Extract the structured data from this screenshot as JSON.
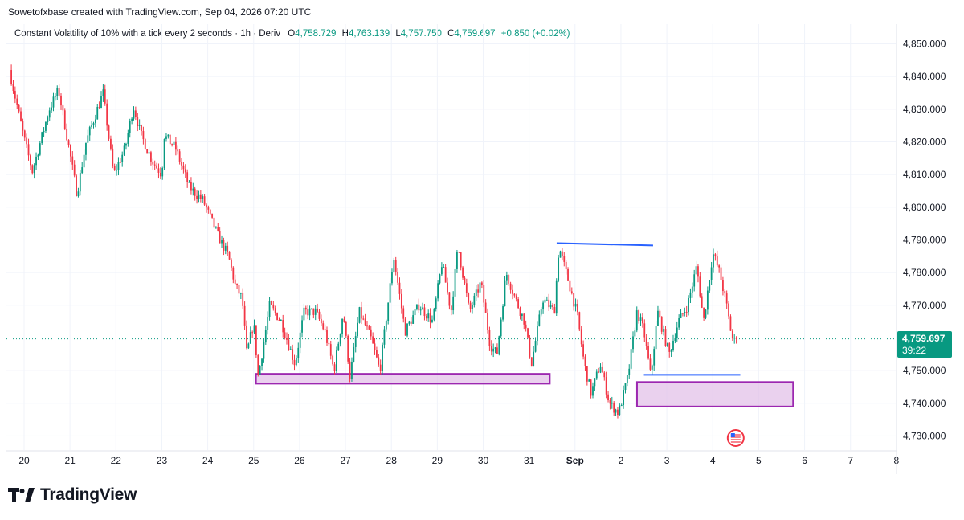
{
  "header": {
    "credit": "Sowetofxbase created with TradingView.com, Sep 04, 2026 07:20 UTC"
  },
  "legend": {
    "symbol": "Constant Volatility of 10% with a tick every 2 seconds · 1h · Deriv",
    "open_label": "O",
    "open": "4,758.729",
    "high_label": "H",
    "high": "4,763.139",
    "low_label": "L",
    "low": "4,757.750",
    "close_label": "C",
    "close": "4,759.697",
    "change": "+0.850 (+0.02%)"
  },
  "price_tag": {
    "price": "4,759.697",
    "countdown": "39:22"
  },
  "brand": {
    "name": "TradingView"
  },
  "colors": {
    "up": "#089981",
    "down": "#f23645",
    "zone_stroke": "#9c27b0",
    "zone_fill": "#e1bee7",
    "trendline": "#2962ff"
  },
  "chart_data": {
    "type": "candlestick",
    "ylim": [
      4726,
      4855
    ],
    "y_ticks": [
      "4,850.000",
      "4,840.000",
      "4,830.000",
      "4,820.000",
      "4,810.000",
      "4,800.000",
      "4,790.000",
      "4,780.000",
      "4,770.000",
      "4,760.000",
      "4,750.000",
      "4,740.000",
      "4,730.000"
    ],
    "y_tick_values": [
      4850,
      4840,
      4830,
      4820,
      4810,
      4800,
      4790,
      4780,
      4770,
      4760,
      4750,
      4740,
      4730
    ],
    "x_labels": [
      "20",
      "21",
      "22",
      "23",
      "24",
      "25",
      "26",
      "27",
      "28",
      "29",
      "30",
      "31",
      "Sep",
      "2",
      "3",
      "4",
      "5",
      "6",
      "7",
      "8"
    ],
    "x_label_days": [
      0,
      1,
      2,
      3,
      4,
      5,
      6,
      7,
      8,
      9,
      10,
      11,
      12,
      13,
      14,
      15,
      16,
      17,
      18,
      19
    ],
    "x_range_days": [
      -0.35,
      19.05
    ],
    "last_price": 4759.697,
    "anchors": [
      [
        -0.32,
        4842
      ],
      [
        0.0,
        4821
      ],
      [
        0.18,
        4811
      ],
      [
        0.55,
        4830
      ],
      [
        0.75,
        4836
      ],
      [
        0.98,
        4818
      ],
      [
        1.15,
        4804
      ],
      [
        1.35,
        4820
      ],
      [
        1.72,
        4835
      ],
      [
        1.95,
        4810
      ],
      [
        2.2,
        4818
      ],
      [
        2.38,
        4831
      ],
      [
        2.55,
        4822
      ],
      [
        2.8,
        4814
      ],
      [
        3.0,
        4810
      ],
      [
        3.05,
        4822
      ],
      [
        3.3,
        4818
      ],
      [
        3.6,
        4806
      ],
      [
        3.9,
        4802
      ],
      [
        4.2,
        4792
      ],
      [
        4.45,
        4785
      ],
      [
        4.6,
        4776
      ],
      [
        4.75,
        4772
      ],
      [
        4.85,
        4755
      ],
      [
        5.0,
        4765
      ],
      [
        5.1,
        4748
      ],
      [
        5.35,
        4770
      ],
      [
        5.6,
        4765
      ],
      [
        5.9,
        4752
      ],
      [
        6.1,
        4768
      ],
      [
        6.35,
        4768
      ],
      [
        6.55,
        4762
      ],
      [
        6.75,
        4750
      ],
      [
        6.95,
        4768
      ],
      [
        7.1,
        4748
      ],
      [
        7.3,
        4768
      ],
      [
        7.55,
        4760
      ],
      [
        7.75,
        4750
      ],
      [
        8.05,
        4785
      ],
      [
        8.3,
        4762
      ],
      [
        8.6,
        4770
      ],
      [
        8.9,
        4765
      ],
      [
        9.1,
        4783
      ],
      [
        9.3,
        4768
      ],
      [
        9.45,
        4788
      ],
      [
        9.7,
        4768
      ],
      [
        9.95,
        4777
      ],
      [
        10.15,
        4758
      ],
      [
        10.3,
        4755
      ],
      [
        10.5,
        4780
      ],
      [
        10.7,
        4772
      ],
      [
        10.9,
        4765
      ],
      [
        11.05,
        4752
      ],
      [
        11.3,
        4772
      ],
      [
        11.55,
        4768
      ],
      [
        11.65,
        4788
      ],
      [
        11.9,
        4775
      ],
      [
        12.05,
        4767
      ],
      [
        12.2,
        4752
      ],
      [
        12.35,
        4743
      ],
      [
        12.55,
        4752
      ],
      [
        12.75,
        4740
      ],
      [
        12.95,
        4737
      ],
      [
        13.15,
        4748
      ],
      [
        13.35,
        4768
      ],
      [
        13.5,
        4762
      ],
      [
        13.65,
        4748
      ],
      [
        13.8,
        4768
      ],
      [
        14.05,
        4755
      ],
      [
        14.25,
        4765
      ],
      [
        14.45,
        4770
      ],
      [
        14.65,
        4782
      ],
      [
        14.8,
        4765
      ],
      [
        15.0,
        4786
      ],
      [
        15.15,
        4780
      ],
      [
        15.3,
        4770
      ],
      [
        15.42,
        4760
      ],
      [
        15.5,
        4758.7
      ],
      [
        15.54,
        4759.7
      ]
    ],
    "trendlines": [
      {
        "x1": 11.6,
        "y1": 4789,
        "x2": 13.7,
        "y2": 4788.3
      },
      {
        "x1": 13.5,
        "y1": 4748.7,
        "x2": 15.6,
        "y2": 4748.7
      }
    ],
    "zones": [
      {
        "x1": 5.05,
        "x2": 11.45,
        "top": 4749,
        "bottom": 4746
      },
      {
        "x1": 13.35,
        "x2": 16.75,
        "top": 4746.5,
        "bottom": 4739
      }
    ]
  }
}
